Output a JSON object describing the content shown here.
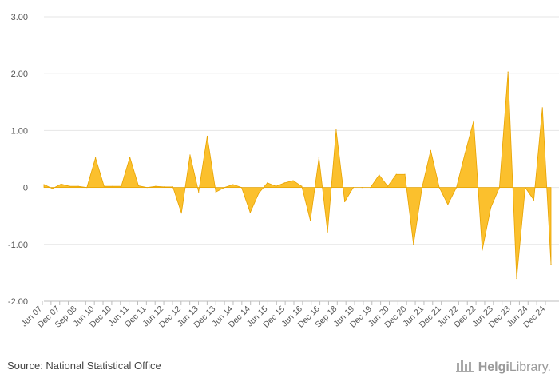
{
  "chart_data": {
    "type": "area",
    "title": "",
    "xlabel": "",
    "ylabel": "",
    "ylim": [
      -2,
      3
    ],
    "yticks": [
      3,
      2,
      1,
      0,
      -1,
      -2
    ],
    "ytick_labels": [
      "3.00",
      "2.00",
      "1.00",
      "0",
      "-1.00",
      "-2.00"
    ],
    "grid": true,
    "legend": "none",
    "color": "#FBC02D",
    "edge_color": "#E8A300",
    "x_labels": [
      "Jun 07",
      "Dec 07",
      "Sep 08",
      "Jun 10",
      "Dec 10",
      "Jun 11",
      "Dec 11",
      "Jun 12",
      "Dec 12",
      "Jun 13",
      "Dec 13",
      "Jun 14",
      "Dec 14",
      "Jun 15",
      "Dec 15",
      "Jun 16",
      "Dec 16",
      "Sep 18",
      "Jun 19",
      "Dec 19",
      "Jun 20",
      "Dec 20",
      "Jun 21",
      "Dec 21",
      "Jun 22",
      "Dec 22",
      "Jun 23",
      "Dec 23",
      "Jun 24",
      "Dec 24"
    ],
    "values": [
      0.05,
      -0.02,
      0.06,
      0.02,
      0.02,
      0.0,
      0.52,
      0.02,
      0.02,
      0.02,
      0.53,
      0.03,
      0.0,
      0.02,
      0.01,
      0.01,
      -0.45,
      0.57,
      -0.08,
      0.9,
      -0.08,
      0.0,
      0.05,
      0.0,
      -0.44,
      -0.1,
      0.08,
      0.02,
      0.08,
      0.12,
      0.02,
      -0.58,
      0.52,
      -0.78,
      1.01,
      -0.25,
      0.0,
      0.0,
      0.0,
      0.22,
      0.02,
      0.23,
      0.23,
      -1.0,
      0.0,
      0.65,
      0.0,
      -0.3,
      0.0,
      0.6,
      1.17,
      -1.1,
      -0.35,
      0.0,
      2.03,
      -1.6,
      0.0,
      -0.22,
      1.4,
      -1.35
    ]
  },
  "footer": {
    "source": "Source: National Statistical Office",
    "brand_bold": "Helgi",
    "brand_rest": "Library."
  }
}
